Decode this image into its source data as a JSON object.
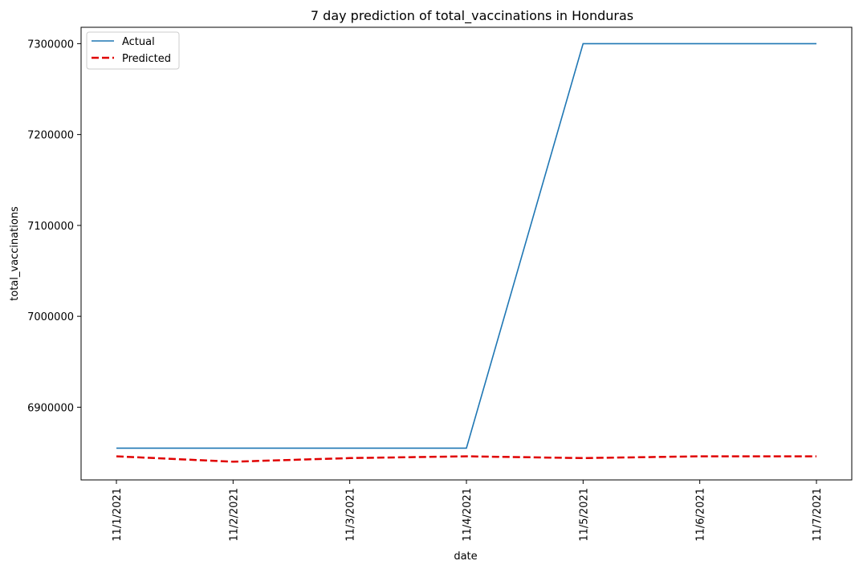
{
  "chart_data": {
    "type": "line",
    "title": "7 day prediction of total_vaccinations in Honduras",
    "xlabel": "date",
    "ylabel": "total_vaccinations",
    "categories": [
      "11/1/2021",
      "11/2/2021",
      "11/3/2021",
      "11/4/2021",
      "11/5/2021",
      "11/6/2021",
      "11/7/2021"
    ],
    "yticks": [
      6900000,
      7000000,
      7100000,
      7200000,
      7300000
    ],
    "ylim": [
      6820000,
      7318000
    ],
    "grid": false,
    "legend_position": "top-left",
    "series": [
      {
        "name": "Actual",
        "color": "#1f77b4",
        "style": "solid",
        "values": [
          6855000,
          6855000,
          6855000,
          6855000,
          7300000,
          7300000,
          7300000
        ]
      },
      {
        "name": "Predicted",
        "color": "#e00000",
        "style": "dashed",
        "values": [
          6846000,
          6840000,
          6844000,
          6846000,
          6844000,
          6846000,
          6846000
        ]
      }
    ]
  }
}
